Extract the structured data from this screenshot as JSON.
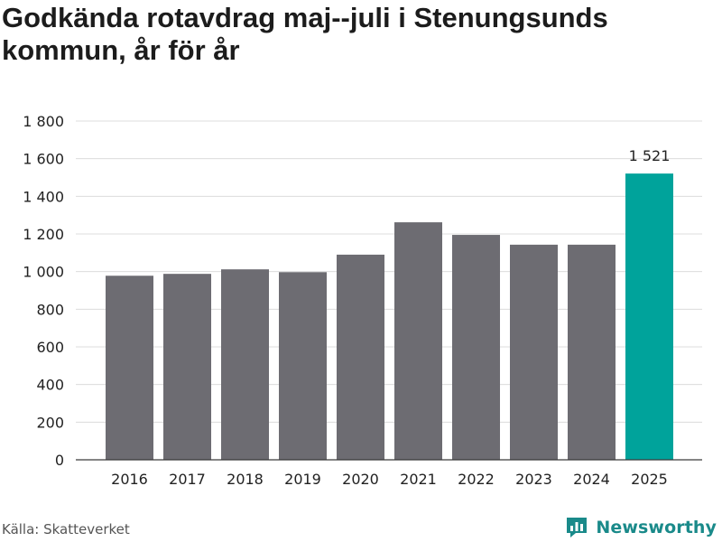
{
  "colors": {
    "bar_default": "#6d6c72",
    "bar_highlight": "#00a39b",
    "grid": "#dcdcdc",
    "axis": "#3a3a3a",
    "brand": "#1a8a8a"
  },
  "footer": {
    "source": "Källa: Skatteverket",
    "brand_name": "Newsworthy",
    "brand_icon": "newsworthy-logo-icon"
  },
  "chart_data": {
    "type": "bar",
    "title": "Godkända rotavdrag maj--juli i Stenungsunds kommun, år för år",
    "xlabel": "",
    "ylabel": "",
    "categories": [
      "2016",
      "2017",
      "2018",
      "2019",
      "2020",
      "2021",
      "2022",
      "2023",
      "2024",
      "2025"
    ],
    "values": [
      978,
      988,
      1012,
      997,
      1090,
      1262,
      1195,
      1143,
      1143,
      1521
    ],
    "highlight_index": 9,
    "data_labels": [
      "",
      "",
      "",
      "",
      "",
      "",
      "",
      "",
      "",
      "1 521"
    ],
    "ylim": [
      0,
      1800
    ],
    "yticks": [
      0,
      200,
      400,
      600,
      800,
      1000,
      1200,
      1400,
      1600,
      1800
    ],
    "ytick_labels": [
      "0",
      "200",
      "400",
      "600",
      "800",
      "1 000",
      "1 200",
      "1 400",
      "1 600",
      "1 800"
    ],
    "grid": true,
    "legend": "none"
  }
}
